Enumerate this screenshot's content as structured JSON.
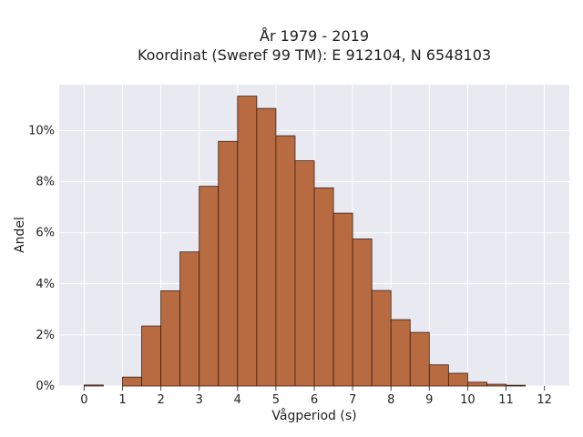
{
  "chart_data": {
    "type": "bar",
    "title": "År 1979 - 2019",
    "subtitle": "Koordinat (Sweref 99 TM): E 912104, N 6548103",
    "xlabel": "Vågperiod (s)",
    "ylabel": "Andel",
    "xlim": [
      -0.65,
      12.65
    ],
    "ylim": [
      0,
      11.8
    ],
    "xticks": [
      0,
      1,
      2,
      3,
      4,
      5,
      6,
      7,
      8,
      9,
      10,
      11,
      12
    ],
    "yticks": [
      0,
      2,
      4,
      6,
      8,
      10
    ],
    "ytick_labels": [
      "0%",
      "2%",
      "4%",
      "6%",
      "8%",
      "10%"
    ],
    "grid": true,
    "bin_width": 0.5,
    "bin_starts": [
      0,
      0.5,
      1,
      1.5,
      2,
      2.5,
      3,
      3.5,
      4,
      4.5,
      5,
      5.5,
      6,
      6.5,
      7,
      7.5,
      8,
      8.5,
      9,
      9.5,
      10,
      10.5,
      11,
      11.5
    ],
    "values": [
      0.04,
      0.0,
      0.35,
      2.35,
      3.73,
      5.25,
      7.82,
      9.58,
      11.35,
      10.87,
      9.8,
      8.82,
      7.76,
      6.77,
      5.76,
      3.74,
      2.6,
      2.1,
      0.83,
      0.5,
      0.15,
      0.07,
      0.03,
      0.0
    ],
    "colors": {
      "bar": "#b86a40",
      "edge": "#3a2218",
      "plot_bg": "#e9e9f1",
      "grid": "#ffffff"
    }
  }
}
